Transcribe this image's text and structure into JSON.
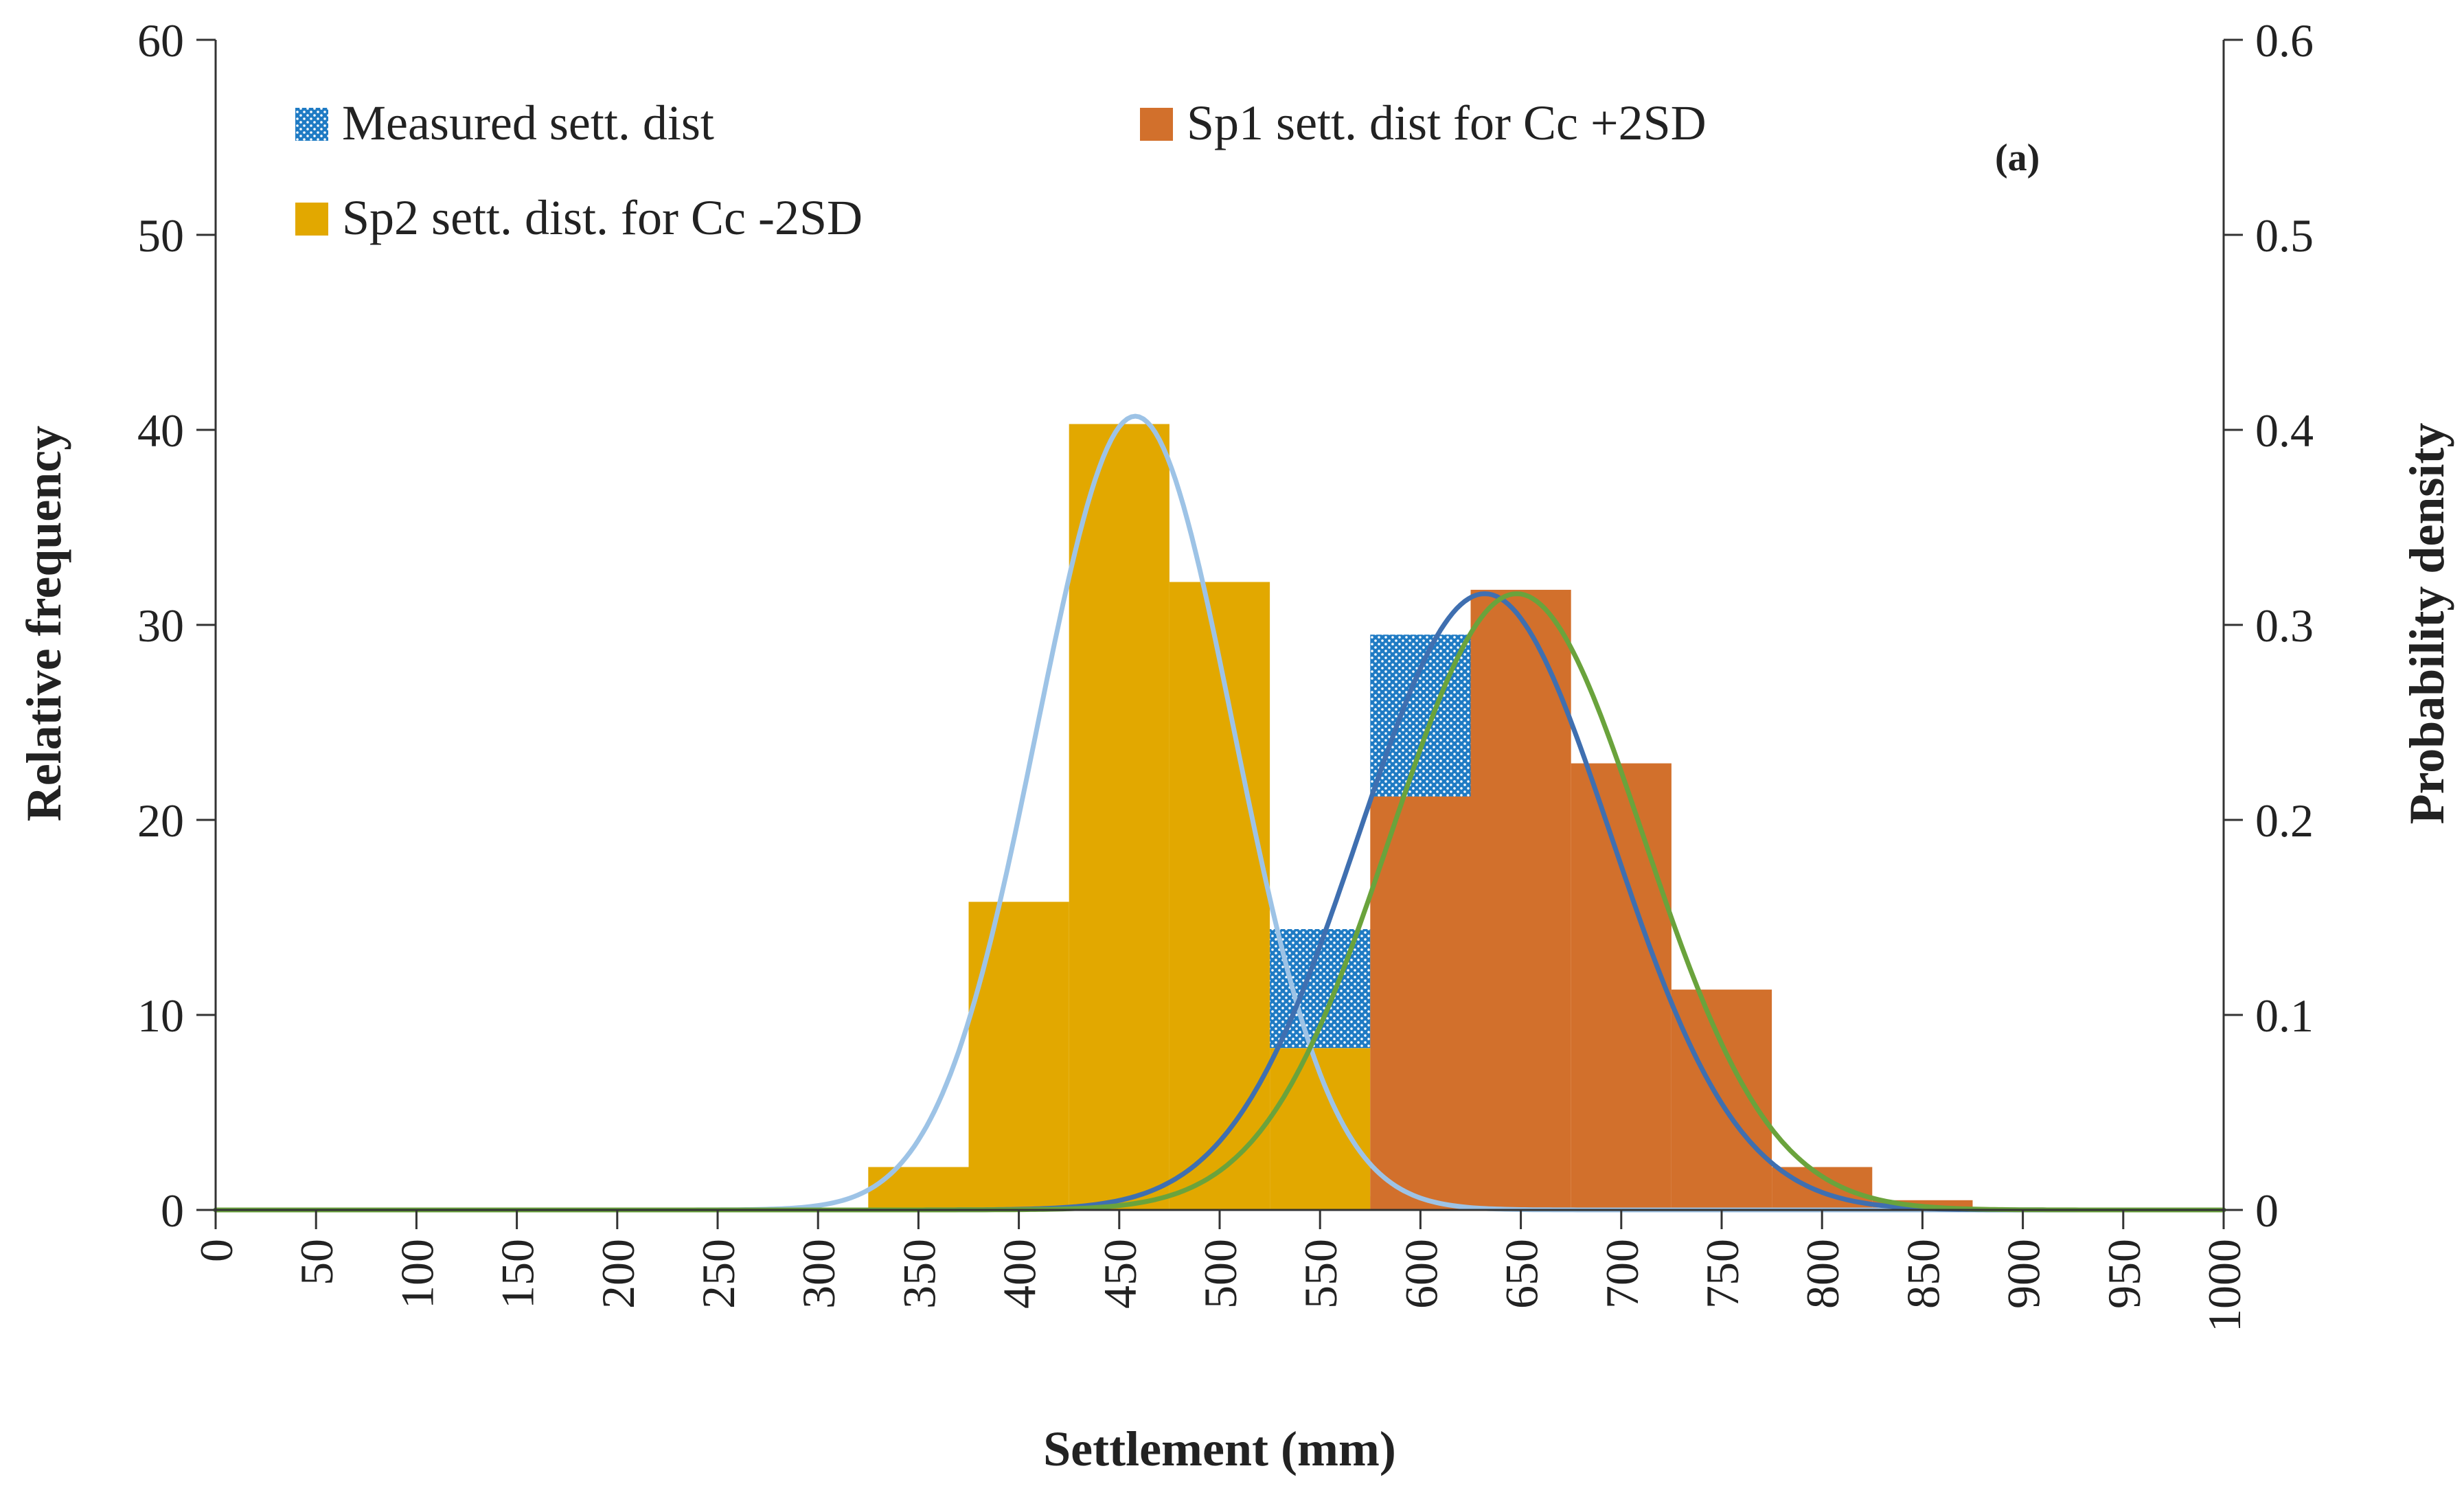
{
  "chart_data": {
    "type": "bar",
    "title": "",
    "annotation": "(a)",
    "xlabel": "Settlement (mm)",
    "ylabel": "Relative frequency",
    "y2label": "Probability density",
    "xlim": [
      0,
      1000
    ],
    "ylim": [
      0,
      60
    ],
    "y2lim": [
      0,
      0.6
    ],
    "xticks": [
      "0",
      "50",
      "100",
      "150",
      "200",
      "250",
      "300",
      "350",
      "400",
      "450",
      "500",
      "550",
      "600",
      "650",
      "700",
      "750",
      "800",
      "850",
      "900",
      "950",
      "1000"
    ],
    "yticks": [
      "0",
      "10",
      "20",
      "30",
      "40",
      "50",
      "60"
    ],
    "y2ticks": [
      "0",
      "0.1",
      "0.2",
      "0.3",
      "0.4",
      "0.5",
      "0.6"
    ],
    "bin_width": 50,
    "colors": {
      "measured": "#1f7bc4",
      "sp1": "#d2702c",
      "sp2": "#e2a800",
      "pdf_sp2": "#9dc3e6",
      "pdf_measured": "#3f6fb0",
      "pdf_sp1": "#6aa33c",
      "axis": "#333333"
    },
    "series": [
      {
        "name": "Sp2 sett. dist. for Cc -2SD",
        "kind": "hist",
        "color_key": "sp2",
        "centers": [
          350,
          400,
          450,
          500,
          550,
          600
        ],
        "values": [
          2.2,
          15.8,
          40.3,
          32.2,
          8.3,
          0.7
        ]
      },
      {
        "name": "Sp1 sett. dist for Cc +2SD",
        "kind": "hist",
        "color_key": "sp1",
        "centers": [
          600,
          650,
          700,
          750,
          800,
          850
        ],
        "values": [
          21.2,
          31.8,
          22.9,
          11.3,
          2.2,
          0.5
        ]
      },
      {
        "name": "Measured sett. dist",
        "kind": "hist",
        "color_key": "measured",
        "centers": [
          550,
          600
        ],
        "bottoms": [
          8.3,
          21.2
        ],
        "values": [
          14.4,
          29.5
        ]
      },
      {
        "name": "Sp2 pdf",
        "kind": "pdf",
        "color_key": "pdf_sp2",
        "mean": 458,
        "sd": 49,
        "peak": 0.407
      },
      {
        "name": "Measured pdf",
        "kind": "pdf",
        "color_key": "pdf_measured",
        "mean": 632,
        "sd": 63,
        "peak": 0.316
      },
      {
        "name": "Sp1 pdf",
        "kind": "pdf",
        "color_key": "pdf_sp1",
        "mean": 648,
        "sd": 63,
        "peak": 0.316
      }
    ],
    "legend": [
      {
        "label": "Measured sett. dist",
        "color_key": "measured",
        "pattern": true
      },
      {
        "label": "Sp1 sett. dist for Cc +2SD",
        "color_key": "sp1",
        "pattern": false
      },
      {
        "label": "Sp2 sett. dist. for Cc -2SD",
        "color_key": "sp2",
        "pattern": false
      }
    ]
  }
}
